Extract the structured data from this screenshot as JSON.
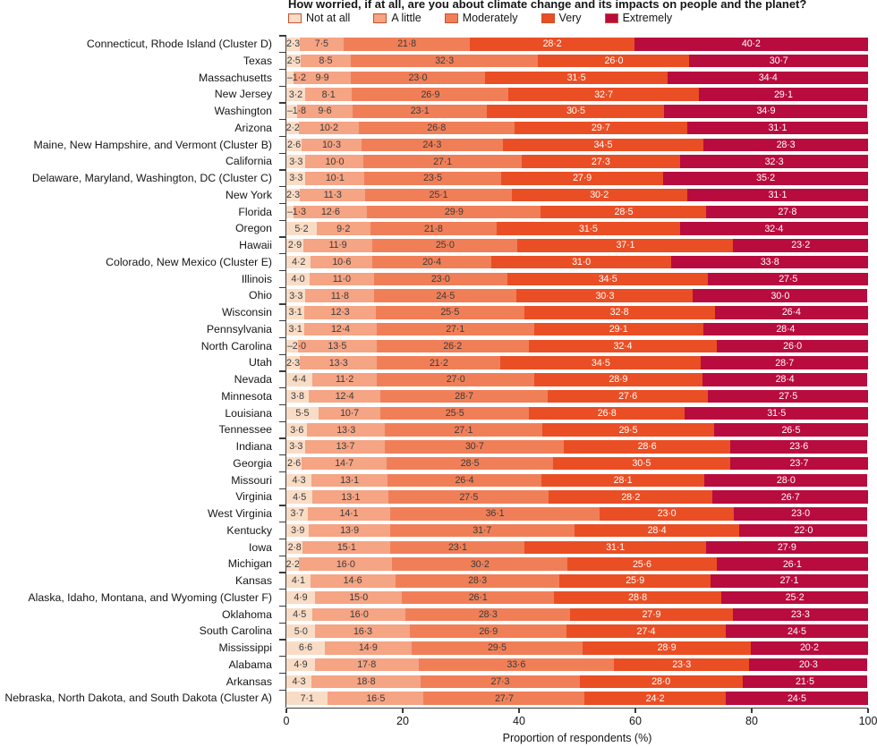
{
  "title": "How worried, if at all, are you about climate change and its impacts on people and the planet?",
  "chart_data": {
    "type": "bar",
    "stacked": true,
    "orientation": "horizontal",
    "title": "How worried, if at all, are you about climate change and its impacts on people and the planet?",
    "xlabel": "Proportion of respondents (%)",
    "xlim": [
      0,
      100
    ],
    "x_ticks": [
      0,
      20,
      40,
      60,
      80,
      100
    ],
    "decimal_separator": "·",
    "legend_position": "top",
    "series_labels": [
      "Not at all",
      "A little",
      "Moderately",
      "Very",
      "Extremely"
    ],
    "colors": [
      "#F9DCC6",
      "#F5A484",
      "#F07F58",
      "#EA4E24",
      "#B80B3E"
    ],
    "label_text_colors": [
      "#3b3b3b",
      "#3b3b3b",
      "#3b3b3b",
      "#ffffff",
      "#ffffff"
    ],
    "rows": [
      {
        "label": "Connecticut, Rhode Island (Cluster D)",
        "values": [
          2.3,
          7.5,
          21.8,
          28.2,
          40.2
        ]
      },
      {
        "label": "Texas",
        "values": [
          2.5,
          8.5,
          32.3,
          26.0,
          30.7
        ]
      },
      {
        "label": "Massachusetts",
        "values": [
          1.2,
          9.9,
          23.0,
          31.5,
          34.4
        ],
        "dash_first": true
      },
      {
        "label": "New Jersey",
        "values": [
          3.2,
          8.1,
          26.9,
          32.7,
          29.1
        ]
      },
      {
        "label": "Washington",
        "values": [
          1.8,
          9.6,
          23.1,
          30.5,
          34.9
        ],
        "dash_first": true
      },
      {
        "label": "Arizona",
        "values": [
          2.2,
          10.2,
          26.8,
          29.7,
          31.1
        ]
      },
      {
        "label": "Maine, New Hampshire, and Vermont (Cluster B)",
        "values": [
          2.6,
          10.3,
          24.3,
          34.5,
          28.3
        ]
      },
      {
        "label": "California",
        "values": [
          3.3,
          10.0,
          27.1,
          27.3,
          32.3
        ]
      },
      {
        "label": "Delaware, Maryland, Washington, DC (Cluster C)",
        "values": [
          3.3,
          10.1,
          23.5,
          27.9,
          35.2
        ]
      },
      {
        "label": "New York",
        "values": [
          2.3,
          11.3,
          25.1,
          30.2,
          31.1
        ]
      },
      {
        "label": "Florida",
        "values": [
          1.3,
          12.6,
          29.9,
          28.5,
          27.8
        ],
        "dash_first": true
      },
      {
        "label": "Oregon",
        "values": [
          5.2,
          9.2,
          21.8,
          31.5,
          32.4
        ]
      },
      {
        "label": "Hawaii",
        "values": [
          2.9,
          11.9,
          25.0,
          37.1,
          23.2
        ]
      },
      {
        "label": "Colorado, New Mexico (Cluster E)",
        "values": [
          4.2,
          10.6,
          20.4,
          31.0,
          33.8
        ]
      },
      {
        "label": "Illinois",
        "values": [
          4.0,
          11.0,
          23.0,
          34.5,
          27.5
        ]
      },
      {
        "label": "Ohio",
        "values": [
          3.3,
          11.8,
          24.5,
          30.3,
          30.0
        ]
      },
      {
        "label": "Wisconsin",
        "values": [
          3.1,
          12.3,
          25.5,
          32.8,
          26.4
        ]
      },
      {
        "label": "Pennsylvania",
        "values": [
          3.1,
          12.4,
          27.1,
          29.1,
          28.4
        ]
      },
      {
        "label": "North Carolina",
        "values": [
          2.0,
          13.5,
          26.2,
          32.4,
          26.0
        ],
        "dash_first": true
      },
      {
        "label": "Utah",
        "values": [
          2.3,
          13.3,
          21.2,
          34.5,
          28.7
        ]
      },
      {
        "label": "Nevada",
        "values": [
          4.4,
          11.2,
          27.0,
          28.9,
          28.4
        ]
      },
      {
        "label": "Minnesota",
        "values": [
          3.8,
          12.4,
          28.7,
          27.6,
          27.5
        ]
      },
      {
        "label": "Louisiana",
        "values": [
          5.5,
          10.7,
          25.5,
          26.8,
          31.5
        ]
      },
      {
        "label": "Tennessee",
        "values": [
          3.6,
          13.3,
          27.1,
          29.5,
          26.5
        ]
      },
      {
        "label": "Indiana",
        "values": [
          3.3,
          13.7,
          30.7,
          28.6,
          23.6
        ]
      },
      {
        "label": "Georgia",
        "values": [
          2.6,
          14.7,
          28.5,
          30.5,
          23.7
        ]
      },
      {
        "label": "Missouri",
        "values": [
          4.3,
          13.1,
          26.4,
          28.1,
          28.0
        ]
      },
      {
        "label": "Virginia",
        "values": [
          4.5,
          13.1,
          27.5,
          28.2,
          26.7
        ]
      },
      {
        "label": "West Virginia",
        "values": [
          3.7,
          14.1,
          36.1,
          23.0,
          23.0
        ]
      },
      {
        "label": "Kentucky",
        "values": [
          3.9,
          13.9,
          31.7,
          28.4,
          22.0
        ]
      },
      {
        "label": "Iowa",
        "values": [
          2.8,
          15.1,
          23.1,
          31.1,
          27.9
        ]
      },
      {
        "label": "Michigan",
        "values": [
          2.2,
          16.0,
          30.2,
          25.6,
          26.1
        ]
      },
      {
        "label": "Kansas",
        "values": [
          4.1,
          14.6,
          28.3,
          25.9,
          27.1
        ]
      },
      {
        "label": "Alaska, Idaho, Montana, and Wyoming (Cluster F)",
        "values": [
          4.9,
          15.0,
          26.1,
          28.8,
          25.2
        ]
      },
      {
        "label": "Oklahoma",
        "values": [
          4.5,
          16.0,
          28.3,
          27.9,
          23.3
        ]
      },
      {
        "label": "South Carolina",
        "values": [
          5.0,
          16.3,
          26.9,
          27.4,
          24.5
        ]
      },
      {
        "label": "Mississippi",
        "values": [
          6.6,
          14.9,
          29.5,
          28.9,
          20.2
        ]
      },
      {
        "label": "Alabama",
        "values": [
          4.9,
          17.8,
          33.6,
          23.3,
          20.3
        ]
      },
      {
        "label": "Arkansas",
        "values": [
          4.3,
          18.8,
          27.3,
          28.0,
          21.5
        ]
      },
      {
        "label": "Nebraska, North Dakota, and South Dakota (Cluster A)",
        "values": [
          7.1,
          16.5,
          27.7,
          24.2,
          24.5
        ]
      }
    ]
  }
}
